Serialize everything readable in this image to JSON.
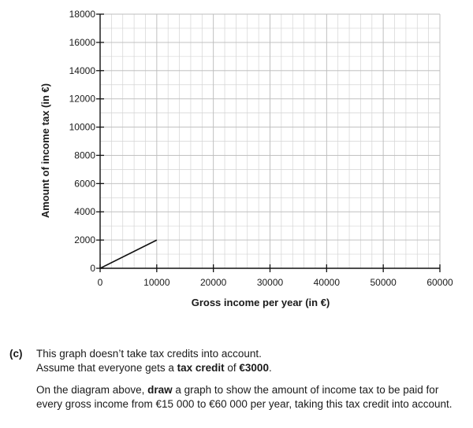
{
  "chart_data": {
    "type": "line",
    "xlabel": "Gross income per year (in €)",
    "ylabel": "Amount of income tax (in €)",
    "xlim": [
      0,
      60000
    ],
    "ylim": [
      0,
      18000
    ],
    "x_ticks": [
      0,
      10000,
      20000,
      30000,
      40000,
      50000,
      60000
    ],
    "x_tick_labels": [
      "0",
      "10000",
      "20000",
      "30000",
      "40000",
      "50000",
      "60000"
    ],
    "y_ticks": [
      0,
      2000,
      4000,
      6000,
      8000,
      10000,
      12000,
      14000,
      16000,
      18000
    ],
    "y_tick_labels": [
      "0",
      "2000",
      "4000",
      "6000",
      "8000",
      "10000",
      "12000",
      "14000",
      "16000",
      "18000"
    ],
    "grid": true,
    "x_minor_step": 2000,
    "y_minor_step": 1000,
    "series": [
      {
        "x": [
          0,
          10000
        ],
        "y": [
          0,
          2000
        ]
      }
    ]
  },
  "question": {
    "label": "(c)",
    "line1": "This graph doesn’t take tax credits into account.",
    "line2_pre": "Assume that everyone gets a ",
    "line2_bold": "tax credit",
    "line2_mid": " of ",
    "line2_amount": "€3000",
    "line2_post": ".",
    "line3_pre": "On the diagram above, ",
    "line3_bold": "draw",
    "line3_post": " a graph to show the amount of income tax to be paid for every gross income from €15 000 to €60 000 per year, taking this tax credit into account."
  }
}
